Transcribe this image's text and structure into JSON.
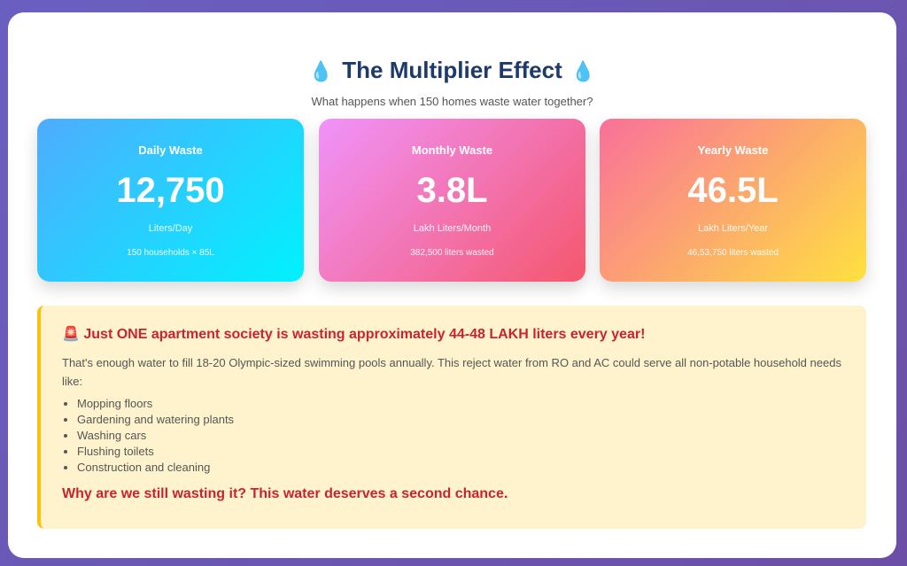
{
  "header": {
    "title": "The Multiplier Effect",
    "icon": "droplet",
    "subtitle": "What happens when 150 homes waste water together?"
  },
  "stats": [
    {
      "label": "Daily Waste",
      "value": "12,750",
      "unit": "Liters/Day",
      "note": "150 households × 85L"
    },
    {
      "label": "Monthly Waste",
      "value": "3.8L",
      "unit": "Lakh Liters/Month",
      "note": "382,500 liters wasted"
    },
    {
      "label": "Yearly Waste",
      "value": "46.5L",
      "unit": "Lakh Liters/Year",
      "note": "46,53,750 liters wasted"
    }
  ],
  "alert": {
    "icon": "siren",
    "heading": "Just ONE apartment society is wasting approximately 44-48 LAKH liters every year!",
    "body": "That's enough water to fill 18-20 Olympic-sized swimming pools annually. This reject water from RO and AC could serve all non-potable household needs like:",
    "items": [
      "Mopping floors",
      "Gardening and watering plants",
      "Washing cars",
      "Flushing toilets",
      "Construction and cleaning"
    ],
    "closing": "Why are we still wasting it? This water deserves a second chance."
  }
}
